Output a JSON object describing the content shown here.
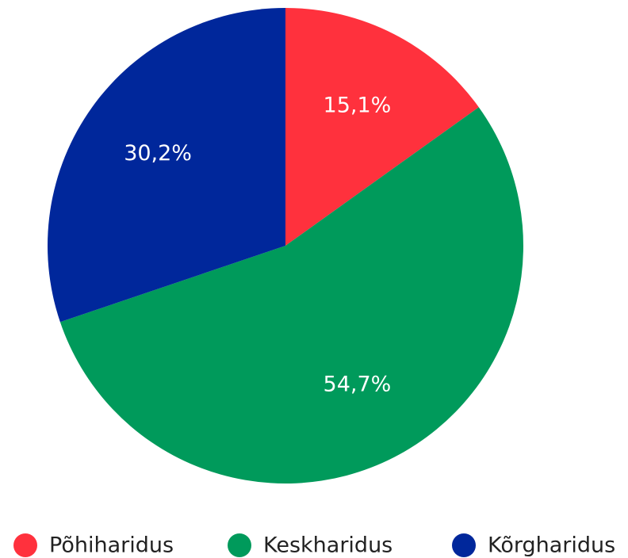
{
  "chart_data": {
    "type": "pie",
    "categories": [
      "Põhiharidus",
      "Keskharidus",
      "Kõrgharidus"
    ],
    "values": [
      15.1,
      54.7,
      30.2
    ],
    "value_labels": [
      "15,1%",
      "54,7%",
      "30,2%"
    ],
    "colors": [
      "#ff313d",
      "#009a5b",
      "#00279b"
    ],
    "legend": "bottom"
  }
}
